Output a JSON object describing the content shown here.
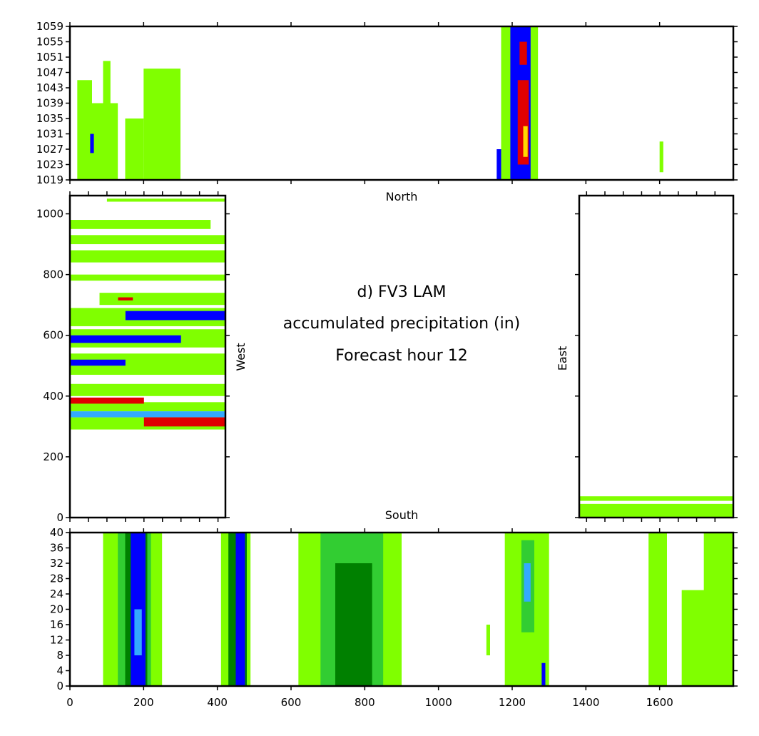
{
  "chart_data": {
    "type": "heatmap",
    "title_lines": [
      "d) FV3 LAM",
      "accumulated precipitation (in)",
      "Forecast hour 12"
    ],
    "side_labels": {
      "north": "North",
      "south": "South",
      "west": "West",
      "east": "East"
    },
    "colors": {
      "light_green": "#80ff00",
      "mid_green": "#32cd32",
      "dark_green": "#008000",
      "blue": "#0000ff",
      "cyan": "#33aaff",
      "purple": "#8b00aa",
      "red": "#e00000",
      "yellow": "#ffd700"
    },
    "panels": [
      {
        "name": "north",
        "xlim": [
          0,
          1800
        ],
        "ylim": [
          1019,
          1059
        ],
        "y_ticks": [
          1019,
          1023,
          1027,
          1031,
          1035,
          1039,
          1043,
          1047,
          1051,
          1055,
          1059
        ],
        "y_tick_labels": [
          "1019",
          "1023",
          "1027",
          "1031",
          "1035",
          "1039",
          "1043",
          "1047",
          "1051",
          "1055",
          "1059"
        ],
        "x_ticks": [
          0,
          200,
          400,
          600,
          800,
          1000,
          1200,
          1400,
          1600
        ],
        "regions": [
          {
            "x": [
              1170,
              1270
            ],
            "y": [
              1019,
              1059
            ],
            "level": "light_green"
          },
          {
            "x": [
              1195,
              1250
            ],
            "y": [
              1019,
              1059
            ],
            "level": "blue"
          },
          {
            "x": [
              1215,
              1245
            ],
            "y": [
              1023,
              1045
            ],
            "level": "red"
          },
          {
            "x": [
              1230,
              1242
            ],
            "y": [
              1025,
              1033
            ],
            "level": "yellow"
          },
          {
            "x": [
              1158,
              1170
            ],
            "y": [
              1019,
              1027
            ],
            "level": "blue"
          },
          {
            "x": [
              1220,
              1240
            ],
            "y": [
              1049,
              1055
            ],
            "level": "red"
          },
          {
            "x": [
              20,
              60
            ],
            "y": [
              1019,
              1045
            ],
            "level": "light_green"
          },
          {
            "x": [
              60,
              130
            ],
            "y": [
              1019,
              1039
            ],
            "level": "light_green"
          },
          {
            "x": [
              55,
              65
            ],
            "y": [
              1026,
              1031
            ],
            "level": "blue"
          },
          {
            "x": [
              90,
              110
            ],
            "y": [
              1025,
              1050
            ],
            "level": "light_green"
          },
          {
            "x": [
              150,
              200
            ],
            "y": [
              1019,
              1035
            ],
            "level": "light_green"
          },
          {
            "x": [
              200,
              300
            ],
            "y": [
              1019,
              1048
            ],
            "level": "light_green"
          },
          {
            "x": [
              1600,
              1610
            ],
            "y": [
              1021,
              1029
            ],
            "level": "light_green"
          }
        ]
      },
      {
        "name": "west",
        "xlim": [
          0,
          420
        ],
        "ylim": [
          0,
          1060
        ],
        "y_ticks": [
          0,
          200,
          400,
          600,
          800,
          1000
        ],
        "y_tick_labels": [
          "0",
          "200",
          "400",
          "600",
          "800",
          "1000"
        ],
        "x_ticks": [
          0,
          50,
          100,
          150,
          200,
          250,
          300,
          350,
          400
        ],
        "regions": [
          {
            "x": [
              0,
              420
            ],
            "y": [
              290,
              330
            ],
            "level": "light_green"
          },
          {
            "x": [
              0,
              420
            ],
            "y": [
              330,
              350
            ],
            "level": "cyan"
          },
          {
            "x": [
              200,
              420
            ],
            "y": [
              300,
              330
            ],
            "level": "red"
          },
          {
            "x": [
              0,
              420
            ],
            "y": [
              350,
              380
            ],
            "level": "light_green"
          },
          {
            "x": [
              0,
              200
            ],
            "y": [
              375,
              395
            ],
            "level": "red"
          },
          {
            "x": [
              0,
              420
            ],
            "y": [
              400,
              440
            ],
            "level": "light_green"
          },
          {
            "x": [
              0,
              420
            ],
            "y": [
              470,
              540
            ],
            "level": "light_green"
          },
          {
            "x": [
              0,
              150
            ],
            "y": [
              500,
              520
            ],
            "level": "blue"
          },
          {
            "x": [
              0,
              420
            ],
            "y": [
              560,
              620
            ],
            "level": "light_green"
          },
          {
            "x": [
              0,
              300
            ],
            "y": [
              575,
              600
            ],
            "level": "blue"
          },
          {
            "x": [
              0,
              420
            ],
            "y": [
              630,
              690
            ],
            "level": "light_green"
          },
          {
            "x": [
              150,
              420
            ],
            "y": [
              650,
              680
            ],
            "level": "blue"
          },
          {
            "x": [
              80,
              420
            ],
            "y": [
              700,
              740
            ],
            "level": "light_green"
          },
          {
            "x": [
              130,
              170
            ],
            "y": [
              715,
              725
            ],
            "level": "red"
          },
          {
            "x": [
              0,
              420
            ],
            "y": [
              780,
              800
            ],
            "level": "light_green"
          },
          {
            "x": [
              0,
              420
            ],
            "y": [
              840,
              880
            ],
            "level": "light_green"
          },
          {
            "x": [
              0,
              420
            ],
            "y": [
              900,
              930
            ],
            "level": "light_green"
          },
          {
            "x": [
              0,
              380
            ],
            "y": [
              950,
              980
            ],
            "level": "light_green"
          },
          {
            "x": [
              100,
              420
            ],
            "y": [
              1040,
              1050
            ],
            "level": "light_green"
          }
        ]
      },
      {
        "name": "east",
        "xlim": [
          1380,
          1800
        ],
        "ylim": [
          0,
          1060
        ],
        "y_ticks": [
          0,
          200,
          400,
          600,
          800,
          1000
        ],
        "x_ticks": [
          1400,
          1450,
          1500,
          1550,
          1600,
          1650,
          1700,
          1750
        ],
        "regions": [
          {
            "x": [
              1380,
              1800
            ],
            "y": [
              0,
              45
            ],
            "level": "light_green"
          },
          {
            "x": [
              1380,
              1800
            ],
            "y": [
              55,
              70
            ],
            "level": "light_green"
          }
        ]
      },
      {
        "name": "south",
        "xlim": [
          0,
          1800
        ],
        "ylim": [
          0,
          40
        ],
        "y_ticks": [
          0,
          4,
          8,
          12,
          16,
          20,
          24,
          28,
          32,
          36,
          40
        ],
        "y_tick_labels": [
          "0",
          "4",
          "8",
          "12",
          "16",
          "20",
          "24",
          "28",
          "32",
          "36",
          "40"
        ],
        "x_ticks": [
          0,
          200,
          400,
          600,
          800,
          1000,
          1200,
          1400,
          1600
        ],
        "x_tick_labels": [
          "0",
          "200",
          "400",
          "600",
          "800",
          "1000",
          "1200",
          "1400",
          "1600"
        ],
        "regions": [
          {
            "x": [
              90,
              250
            ],
            "y": [
              0,
              40
            ],
            "level": "light_green"
          },
          {
            "x": [
              130,
              220
            ],
            "y": [
              0,
              40
            ],
            "level": "mid_green"
          },
          {
            "x": [
              150,
              210
            ],
            "y": [
              0,
              40
            ],
            "level": "dark_green"
          },
          {
            "x": [
              165,
              205
            ],
            "y": [
              0,
              40
            ],
            "level": "blue"
          },
          {
            "x": [
              175,
              195
            ],
            "y": [
              8,
              20
            ],
            "level": "cyan"
          },
          {
            "x": [
              410,
              490
            ],
            "y": [
              0,
              40
            ],
            "level": "light_green"
          },
          {
            "x": [
              430,
              480
            ],
            "y": [
              0,
              40
            ],
            "level": "dark_green"
          },
          {
            "x": [
              450,
              475
            ],
            "y": [
              0,
              40
            ],
            "level": "blue"
          },
          {
            "x": [
              620,
              900
            ],
            "y": [
              0,
              40
            ],
            "level": "light_green"
          },
          {
            "x": [
              680,
              850
            ],
            "y": [
              0,
              40
            ],
            "level": "mid_green"
          },
          {
            "x": [
              720,
              820
            ],
            "y": [
              0,
              32
            ],
            "level": "dark_green"
          },
          {
            "x": [
              1130,
              1140
            ],
            "y": [
              8,
              16
            ],
            "level": "light_green"
          },
          {
            "x": [
              1180,
              1300
            ],
            "y": [
              0,
              40
            ],
            "level": "light_green"
          },
          {
            "x": [
              1225,
              1260
            ],
            "y": [
              14,
              38
            ],
            "level": "mid_green"
          },
          {
            "x": [
              1232,
              1250
            ],
            "y": [
              22,
              32
            ],
            "level": "cyan"
          },
          {
            "x": [
              1280,
              1290
            ],
            "y": [
              0,
              6
            ],
            "level": "blue"
          },
          {
            "x": [
              1570,
              1620
            ],
            "y": [
              0,
              40
            ],
            "level": "light_green"
          },
          {
            "x": [
              1660,
              1800
            ],
            "y": [
              0,
              25
            ],
            "level": "light_green"
          },
          {
            "x": [
              1720,
              1800
            ],
            "y": [
              0,
              40
            ],
            "level": "light_green"
          }
        ]
      }
    ]
  }
}
